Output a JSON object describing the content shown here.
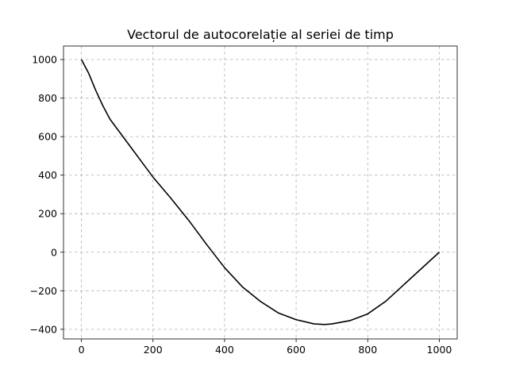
{
  "chart_data": {
    "type": "line",
    "title": "Vectorul de autocorelație al seriei de timp",
    "xlabel": "",
    "ylabel": "",
    "xlim": [
      -50,
      1050
    ],
    "ylim": [
      -450,
      1070
    ],
    "grid": true,
    "x_ticks": [
      0,
      200,
      400,
      600,
      800,
      1000
    ],
    "y_ticks": [
      -400,
      -200,
      0,
      200,
      400,
      600,
      800,
      1000
    ],
    "x_tick_labels": [
      "0",
      "200",
      "400",
      "600",
      "800",
      "1000"
    ],
    "y_tick_labels": [
      "−400",
      "−200",
      "0",
      "200",
      "400",
      "600",
      "800",
      "1000"
    ],
    "series": [
      {
        "color": "#000000",
        "x": [
          0,
          20,
          40,
          60,
          80,
          100,
          120,
          140,
          160,
          180,
          200,
          250,
          300,
          350,
          400,
          450,
          500,
          550,
          600,
          650,
          680,
          700,
          750,
          800,
          850,
          900,
          950,
          1000
        ],
        "y": [
          1000,
          930,
          840,
          760,
          690,
          640,
          590,
          540,
          490,
          440,
          390,
          280,
          165,
          40,
          -80,
          -180,
          -255,
          -315,
          -350,
          -372,
          -375,
          -372,
          -355,
          -320,
          -255,
          -170,
          -85,
          0
        ]
      }
    ]
  }
}
